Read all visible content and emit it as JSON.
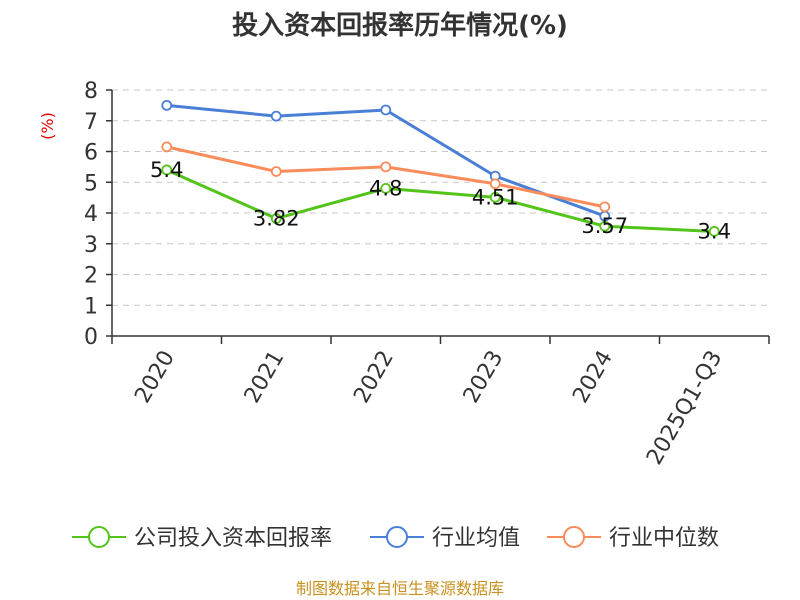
{
  "chart_data": {
    "type": "line",
    "title": "投入资本回报率历年情况(%)",
    "ylabel": "(%)",
    "xlabel": "",
    "categories": [
      "2020",
      "2021",
      "2022",
      "2023",
      "2024",
      "2025Q1-Q3"
    ],
    "ylim": [
      0,
      8
    ],
    "yticks": [
      0,
      1,
      2,
      3,
      4,
      5,
      6,
      7,
      8
    ],
    "grid": true,
    "legend_position": "bottom",
    "series": [
      {
        "name": "公司投入资本回报率",
        "color": "#52c41a",
        "values": [
          5.4,
          3.82,
          4.8,
          4.51,
          3.57,
          3.4
        ],
        "labels": [
          "5.4",
          "3.82",
          "4.8",
          "4.51",
          "3.57",
          "3.4"
        ]
      },
      {
        "name": "行业均值",
        "color": "#4a7fd6",
        "values": [
          7.5,
          7.15,
          7.35,
          5.2,
          3.9,
          null
        ]
      },
      {
        "name": "行业中位数",
        "color": "#f98c5a",
        "values": [
          6.15,
          5.35,
          5.5,
          4.95,
          4.2,
          null
        ]
      }
    ]
  },
  "source_text": "制图数据来自恒生聚源数据库"
}
